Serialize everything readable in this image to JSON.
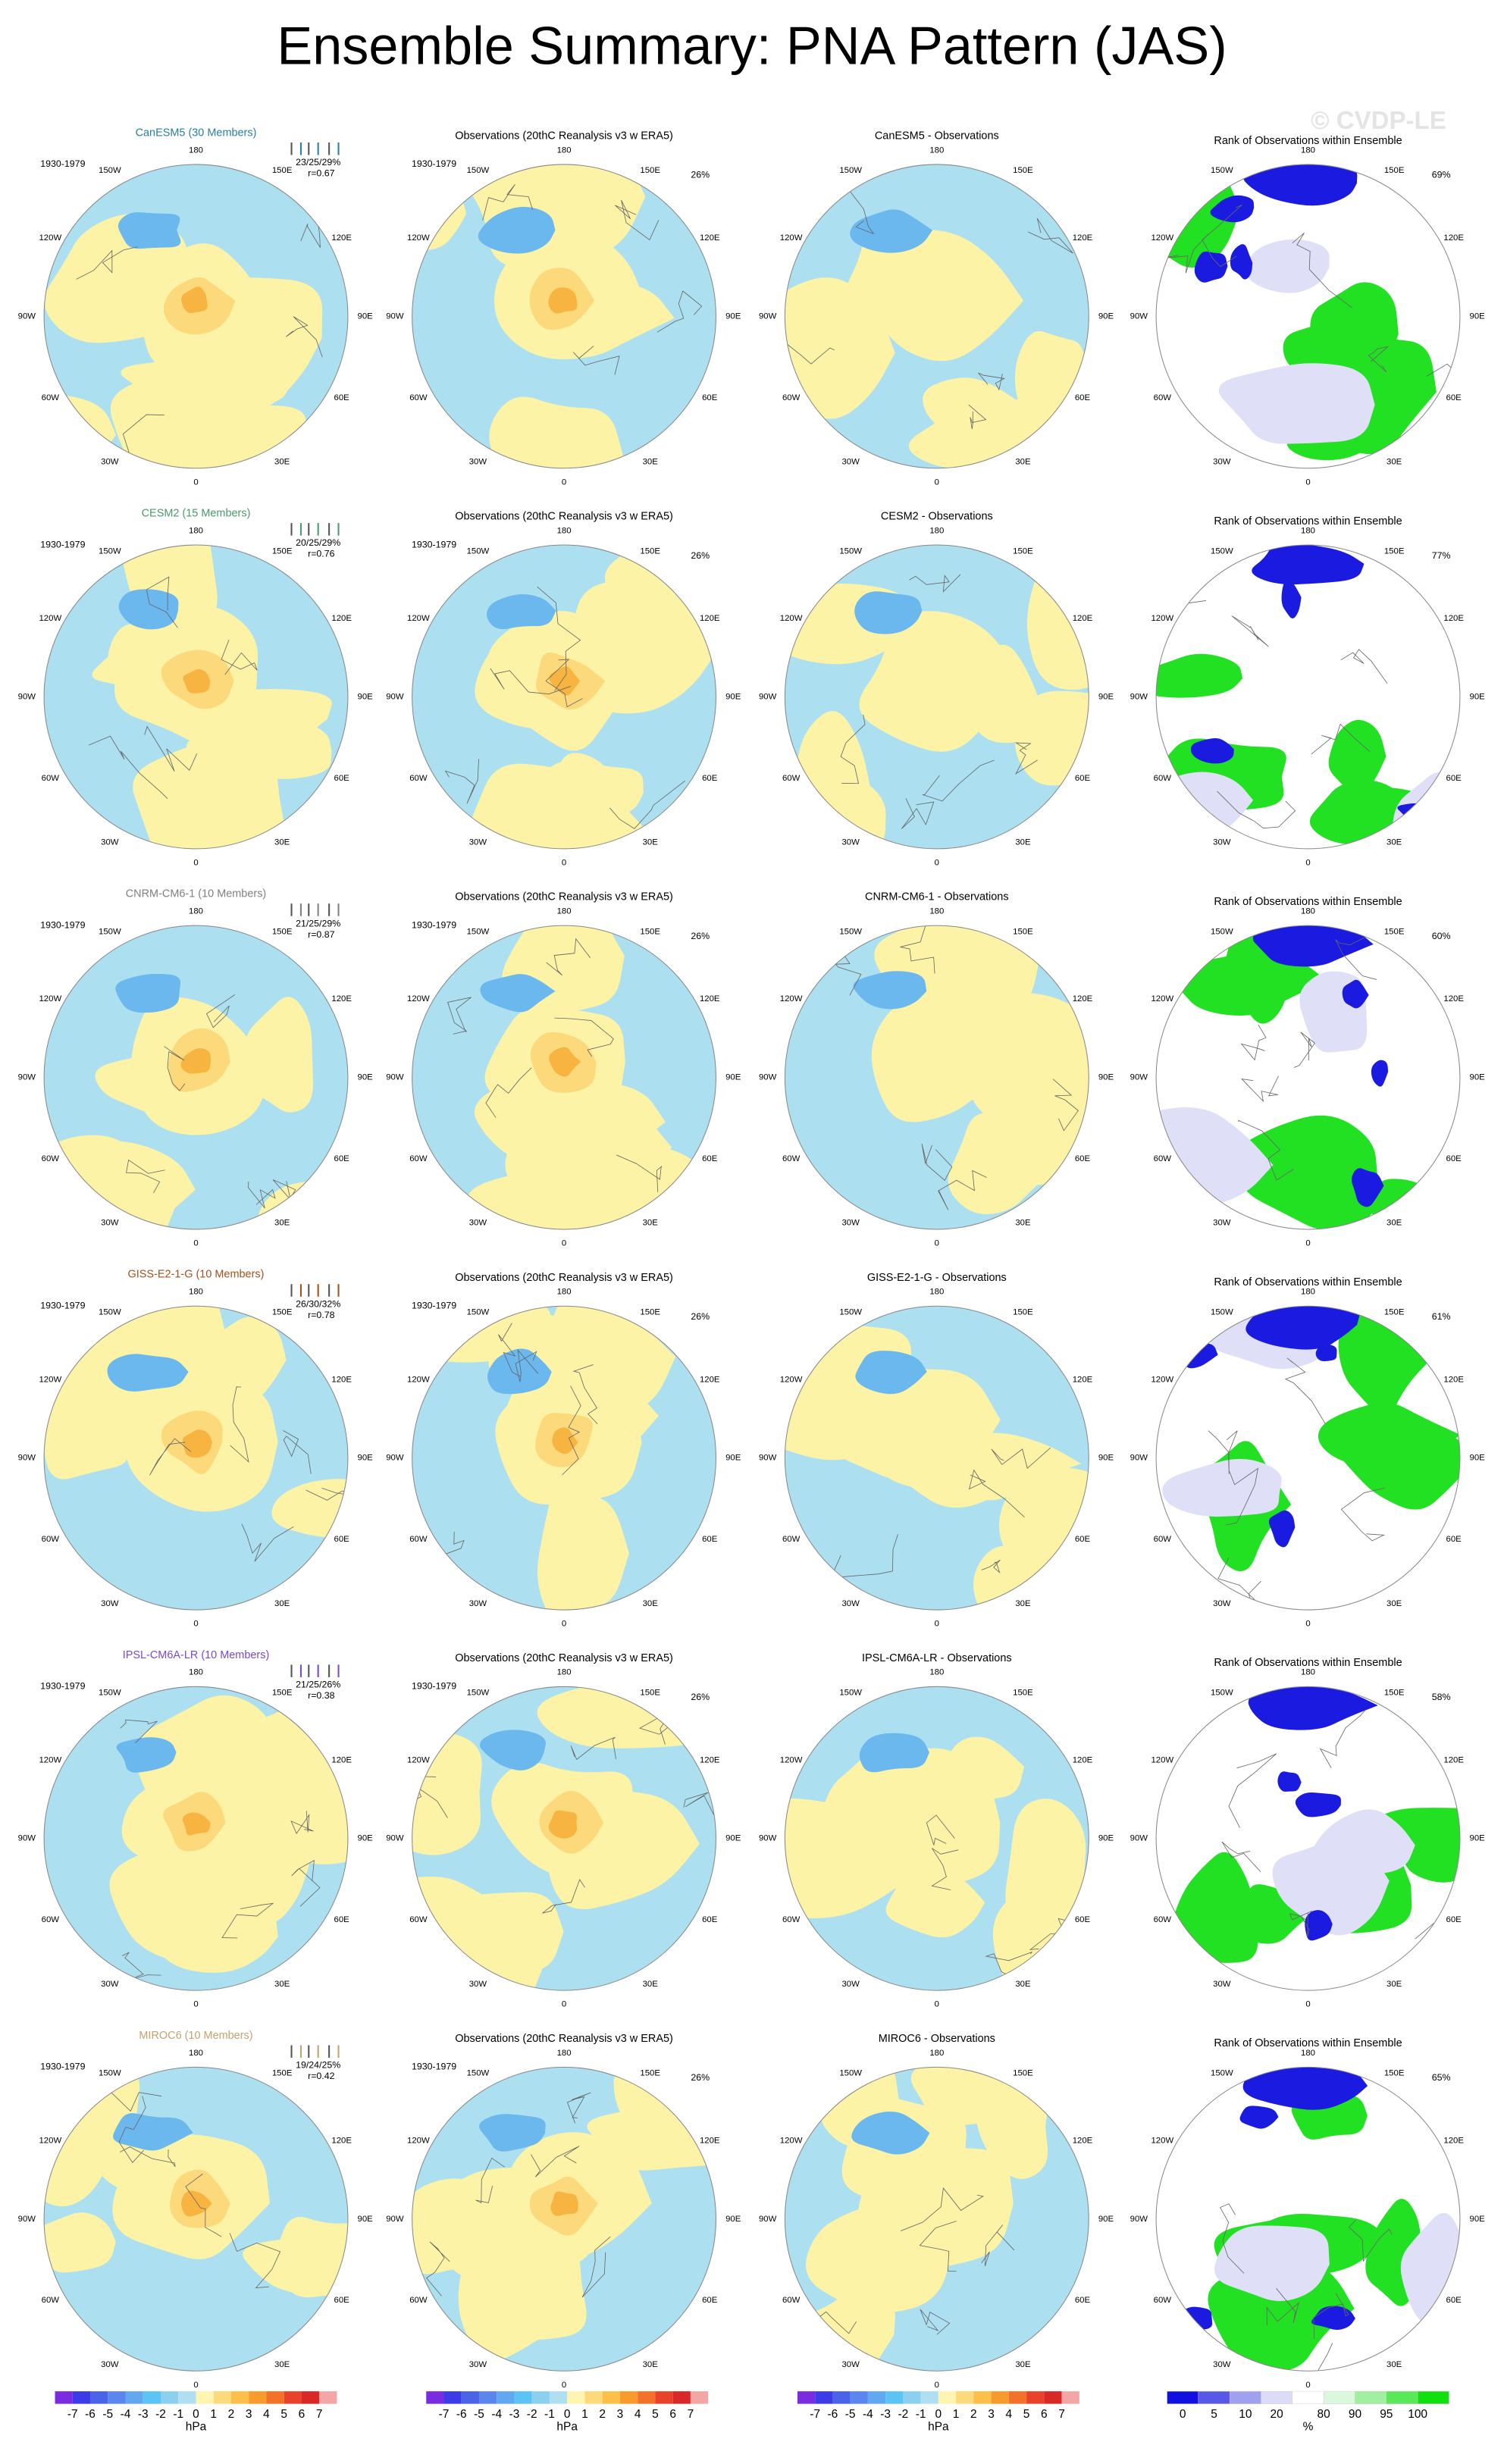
{
  "title": "Ensemble Summary: PNA Pattern (JAS)",
  "watermark": "© CVDP-LE",
  "lon_labels": {
    "n": "180",
    "nw": "150W",
    "ne": "150E",
    "wnw": "120W",
    "ene": "120E",
    "w": "90W",
    "e": "90E",
    "wsw": "60W",
    "ese": "60E",
    "sw": "30W",
    "se": "30E",
    "s": "0"
  },
  "rows": [
    {
      "members_label": "CanESM5 (30 Members)",
      "color": "#2a7fa0",
      "period": "1930-1979",
      "stats": "23/25/29%",
      "corr": "r=0.67",
      "obs_title": "Observations (20thC Reanalysis v3 w ERA5)",
      "obs_period": "1930-1979",
      "obs_pct": "26%",
      "diff_title": "CanESM5 - Observations",
      "rank_title": "Rank of Observations within Ensemble",
      "rank_pct": "69%"
    },
    {
      "members_label": "CESM2 (15 Members)",
      "color": "#4a9a6a",
      "period": "1930-1979",
      "stats": "20/25/29%",
      "corr": "r=0.76",
      "obs_title": "Observations (20thC Reanalysis v3 w ERA5)",
      "obs_period": "1930-1979",
      "obs_pct": "26%",
      "diff_title": "CESM2 - Observations",
      "rank_title": "Rank of Observations within Ensemble",
      "rank_pct": "77%"
    },
    {
      "members_label": "CNRM-CM6-1 (10 Members)",
      "color": "#808080",
      "period": "1930-1979",
      "stats": "21/25/29%",
      "corr": "r=0.87",
      "obs_title": "Observations (20thC Reanalysis v3 w ERA5)",
      "obs_period": "1930-1979",
      "obs_pct": "26%",
      "diff_title": "CNRM-CM6-1 - Observations",
      "rank_title": "Rank of Observations within Ensemble",
      "rank_pct": "60%"
    },
    {
      "members_label": "GISS-E2-1-G (10 Members)",
      "color": "#a0521e",
      "period": "1930-1979",
      "stats": "26/30/32%",
      "corr": "r=0.78",
      "obs_title": "Observations (20thC Reanalysis v3 w ERA5)",
      "obs_period": "1930-1979",
      "obs_pct": "26%",
      "diff_title": "GISS-E2-1-G - Observations",
      "rank_title": "Rank of Observations within Ensemble",
      "rank_pct": "61%"
    },
    {
      "members_label": "IPSL-CM6A-LR (10 Members)",
      "color": "#7a4ac8",
      "period": "1930-1979",
      "stats": "21/25/26%",
      "corr": "r=0.38",
      "obs_title": "Observations (20thC Reanalysis v3 w ERA5)",
      "obs_period": "1930-1979",
      "obs_pct": "26%",
      "diff_title": "IPSL-CM6A-LR - Observations",
      "rank_title": "Rank of Observations within Ensemble",
      "rank_pct": "58%"
    },
    {
      "members_label": "MIROC6 (10 Members)",
      "color": "#c8a070",
      "period": "1930-1979",
      "stats": "19/24/25%",
      "corr": "r=0.42",
      "obs_title": "Observations (20thC Reanalysis v3 w ERA5)",
      "obs_period": "1930-1979",
      "obs_pct": "26%",
      "diff_title": "MIROC6 - Observations",
      "rank_title": "Rank of Observations within Ensemble",
      "rank_pct": "65%"
    }
  ],
  "colorbar_hpa": {
    "labels": [
      "-7",
      "-6",
      "-5",
      "-4",
      "-3",
      "-2",
      "-1",
      "0",
      "1",
      "2",
      "3",
      "4",
      "5",
      "6",
      "7"
    ],
    "unit": "hPa"
  },
  "colorbar_rank": {
    "labels": [
      "0",
      "5",
      "10",
      "20",
      "80",
      "90",
      "95",
      "100"
    ],
    "unit": "%"
  }
}
